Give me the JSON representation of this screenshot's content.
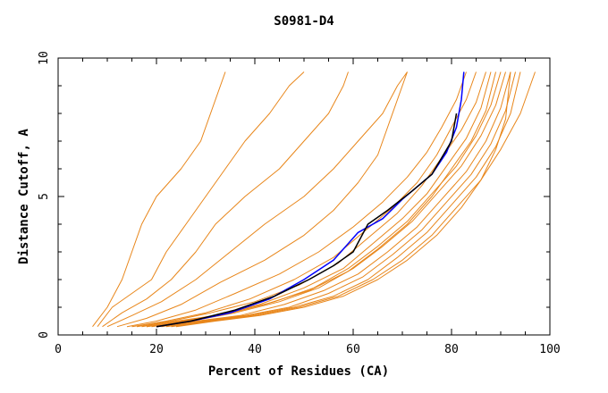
{
  "chart_data": {
    "type": "line",
    "title": "S0981-D4",
    "xlabel": "Percent of Residues (CA)",
    "ylabel": "Distance Cutoff, A",
    "xlim": [
      0,
      100
    ],
    "ylim": [
      0,
      10
    ],
    "x_ticks": [
      0,
      20,
      40,
      60,
      80,
      100
    ],
    "y_ticks": [
      0,
      5,
      10
    ],
    "grid": false,
    "colors": {
      "group": "#e8861a",
      "highlight_blue": "#0000ff",
      "highlight_black": "#000000"
    },
    "group_series": [
      {
        "values": [
          [
            7,
            0.3
          ],
          [
            10,
            1
          ],
          [
            13,
            2
          ],
          [
            15,
            3
          ],
          [
            17,
            4
          ],
          [
            20,
            5
          ],
          [
            25,
            6
          ],
          [
            29,
            7
          ],
          [
            31,
            8
          ],
          [
            33,
            9
          ],
          [
            34,
            9.5
          ]
        ]
      },
      {
        "values": [
          [
            8,
            0.3
          ],
          [
            11,
            1
          ],
          [
            15,
            1.5
          ],
          [
            19,
            2
          ],
          [
            22,
            3
          ],
          [
            26,
            4
          ],
          [
            30,
            5
          ],
          [
            34,
            6
          ],
          [
            38,
            7
          ],
          [
            43,
            8
          ],
          [
            47,
            9
          ],
          [
            50,
            9.5
          ]
        ]
      },
      {
        "values": [
          [
            9,
            0.3
          ],
          [
            13,
            0.8
          ],
          [
            18,
            1.3
          ],
          [
            23,
            2
          ],
          [
            28,
            3
          ],
          [
            32,
            4
          ],
          [
            38,
            5
          ],
          [
            45,
            6
          ],
          [
            50,
            7
          ],
          [
            55,
            8
          ],
          [
            58,
            9
          ],
          [
            59,
            9.5
          ]
        ]
      },
      {
        "values": [
          [
            10,
            0.3
          ],
          [
            15,
            0.7
          ],
          [
            21,
            1.2
          ],
          [
            28,
            2
          ],
          [
            35,
            3
          ],
          [
            42,
            4
          ],
          [
            50,
            5
          ],
          [
            56,
            6
          ],
          [
            61,
            7
          ],
          [
            66,
            8
          ],
          [
            69,
            9
          ],
          [
            71,
            9.5
          ]
        ]
      },
      {
        "values": [
          [
            12,
            0.3
          ],
          [
            18,
            0.6
          ],
          [
            25,
            1.1
          ],
          [
            33,
            1.9
          ],
          [
            42,
            2.7
          ],
          [
            50,
            3.6
          ],
          [
            56,
            4.5
          ],
          [
            61,
            5.5
          ],
          [
            65,
            6.5
          ],
          [
            67,
            7.5
          ],
          [
            69,
            8.5
          ],
          [
            71,
            9.5
          ]
        ]
      },
      {
        "values": [
          [
            14,
            0.3
          ],
          [
            20,
            0.5
          ],
          [
            28,
            0.9
          ],
          [
            36,
            1.5
          ],
          [
            45,
            2.2
          ],
          [
            53,
            3
          ],
          [
            60,
            3.9
          ],
          [
            66,
            4.8
          ],
          [
            71,
            5.7
          ],
          [
            75,
            6.6
          ],
          [
            78,
            7.5
          ],
          [
            81,
            8.5
          ],
          [
            83,
            9.5
          ]
        ]
      },
      {
        "values": [
          [
            15,
            0.3
          ],
          [
            22,
            0.5
          ],
          [
            30,
            0.8
          ],
          [
            39,
            1.3
          ],
          [
            48,
            2
          ],
          [
            56,
            2.8
          ],
          [
            62,
            3.7
          ],
          [
            68,
            4.6
          ],
          [
            73,
            5.5
          ],
          [
            77,
            6.5
          ],
          [
            80,
            7.5
          ],
          [
            83,
            8.5
          ],
          [
            85,
            9.5
          ]
        ]
      },
      {
        "values": [
          [
            16,
            0.3
          ],
          [
            23,
            0.5
          ],
          [
            31,
            0.8
          ],
          [
            40,
            1.2
          ],
          [
            49,
            1.8
          ],
          [
            57,
            2.6
          ],
          [
            63,
            3.5
          ],
          [
            69,
            4.4
          ],
          [
            74,
            5.4
          ],
          [
            78,
            6.4
          ],
          [
            82,
            7.4
          ],
          [
            85,
            8.4
          ],
          [
            87,
            9.5
          ]
        ]
      },
      {
        "values": [
          [
            17,
            0.3
          ],
          [
            24,
            0.5
          ],
          [
            32,
            0.7
          ],
          [
            41,
            1.1
          ],
          [
            50,
            1.7
          ],
          [
            58,
            2.4
          ],
          [
            64,
            3.3
          ],
          [
            70,
            4.2
          ],
          [
            75,
            5.1
          ],
          [
            79,
            6.1
          ],
          [
            83,
            7.1
          ],
          [
            86,
            8.2
          ],
          [
            88,
            9.5
          ]
        ]
      },
      {
        "values": [
          [
            18,
            0.3
          ],
          [
            25,
            0.5
          ],
          [
            33,
            0.7
          ],
          [
            42,
            1.1
          ],
          [
            51,
            1.6
          ],
          [
            59,
            2.3
          ],
          [
            65,
            3.1
          ],
          [
            71,
            4
          ],
          [
            76,
            5
          ],
          [
            80,
            6
          ],
          [
            84,
            7
          ],
          [
            87,
            8.1
          ],
          [
            89,
            9.5
          ]
        ]
      },
      {
        "values": [
          [
            18,
            0.3
          ],
          [
            26,
            0.5
          ],
          [
            35,
            0.8
          ],
          [
            44,
            1.2
          ],
          [
            52,
            1.7
          ],
          [
            59,
            2.4
          ],
          [
            65,
            3.2
          ],
          [
            71,
            4.1
          ],
          [
            76,
            5.1
          ],
          [
            81,
            6.1
          ],
          [
            85,
            7.2
          ],
          [
            88,
            8.3
          ],
          [
            90,
            9.5
          ]
        ]
      },
      {
        "values": [
          [
            19,
            0.3
          ],
          [
            27,
            0.5
          ],
          [
            36,
            0.8
          ],
          [
            45,
            1.2
          ],
          [
            53,
            1.7
          ],
          [
            60,
            2.4
          ],
          [
            66,
            3.2
          ],
          [
            72,
            4.1
          ],
          [
            77,
            5.1
          ],
          [
            82,
            6.1
          ],
          [
            86,
            7.2
          ],
          [
            89,
            8.3
          ],
          [
            91,
            9.5
          ]
        ]
      },
      {
        "values": [
          [
            20,
            0.3
          ],
          [
            28,
            0.5
          ],
          [
            37,
            0.7
          ],
          [
            46,
            1.1
          ],
          [
            54,
            1.6
          ],
          [
            61,
            2.2
          ],
          [
            67,
            3
          ],
          [
            73,
            3.9
          ],
          [
            78,
            4.9
          ],
          [
            83,
            5.9
          ],
          [
            87,
            7
          ],
          [
            90,
            8.2
          ],
          [
            92,
            9.5
          ]
        ]
      },
      {
        "values": [
          [
            21,
            0.3
          ],
          [
            29,
            0.5
          ],
          [
            38,
            0.7
          ],
          [
            47,
            1
          ],
          [
            55,
            1.5
          ],
          [
            62,
            2.1
          ],
          [
            68,
            2.9
          ],
          [
            74,
            3.8
          ],
          [
            79,
            4.8
          ],
          [
            84,
            5.8
          ],
          [
            88,
            6.9
          ],
          [
            91,
            8.1
          ],
          [
            93,
            9.5
          ]
        ]
      },
      {
        "values": [
          [
            22,
            0.3
          ],
          [
            30,
            0.5
          ],
          [
            39,
            0.7
          ],
          [
            48,
            1
          ],
          [
            56,
            1.4
          ],
          [
            63,
            2
          ],
          [
            69,
            2.8
          ],
          [
            75,
            3.7
          ],
          [
            80,
            4.7
          ],
          [
            85,
            5.7
          ],
          [
            89,
            6.8
          ],
          [
            92,
            8
          ],
          [
            94,
            9.5
          ]
        ]
      },
      {
        "values": [
          [
            23,
            0.3
          ],
          [
            31,
            0.5
          ],
          [
            40,
            0.7
          ],
          [
            49,
            1
          ],
          [
            57,
            1.4
          ],
          [
            64,
            2
          ],
          [
            70,
            2.7
          ],
          [
            76,
            3.6
          ],
          [
            81,
            4.6
          ],
          [
            86,
            5.6
          ],
          [
            90,
            6.7
          ],
          [
            94,
            8
          ],
          [
            97,
            9.5
          ]
        ]
      },
      {
        "values": [
          [
            24,
            0.3
          ],
          [
            32,
            0.5
          ],
          [
            41,
            0.7
          ],
          [
            50,
            1
          ],
          [
            58,
            1.4
          ],
          [
            65,
            2
          ],
          [
            71,
            2.7
          ],
          [
            77,
            3.6
          ],
          [
            82,
            4.6
          ],
          [
            86,
            5.6
          ],
          [
            89,
            6.7
          ],
          [
            91,
            7.8
          ],
          [
            92,
            9.5
          ]
        ]
      }
    ],
    "highlight_series": [
      {
        "color": "#0000ff",
        "values": [
          [
            20,
            0.3
          ],
          [
            27,
            0.5
          ],
          [
            35,
            0.8
          ],
          [
            43,
            1.3
          ],
          [
            50,
            2
          ],
          [
            56,
            2.7
          ],
          [
            61,
            3.7
          ],
          [
            66,
            4.2
          ],
          [
            70,
            4.9
          ],
          [
            76,
            5.8
          ],
          [
            79,
            6.6
          ],
          [
            81,
            7.5
          ],
          [
            82,
            8.5
          ],
          [
            82.5,
            9.5
          ]
        ]
      },
      {
        "color": "#000000",
        "values": [
          [
            20,
            0.3
          ],
          [
            27,
            0.5
          ],
          [
            36,
            0.9
          ],
          [
            44,
            1.4
          ],
          [
            51,
            2
          ],
          [
            56,
            2.5
          ],
          [
            60,
            3
          ],
          [
            63,
            4
          ],
          [
            67,
            4.5
          ],
          [
            72,
            5.2
          ],
          [
            76,
            5.8
          ],
          [
            78,
            6.4
          ],
          [
            80,
            7
          ],
          [
            81,
            8
          ]
        ]
      }
    ]
  }
}
